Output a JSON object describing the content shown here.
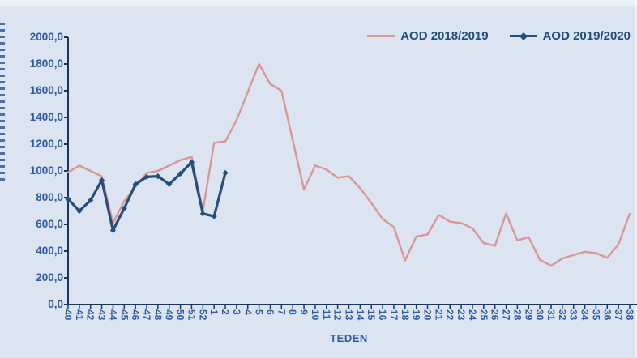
{
  "legend": {
    "items": [
      {
        "label": "AOD 2018/2019"
      },
      {
        "label": "AOD 2019/2020"
      }
    ]
  },
  "x_axis": {
    "title": "TEDEN"
  },
  "colors": {
    "background": "#dbe4f0",
    "axis": "#17375e",
    "tick_label": "#2e5b9f",
    "legend_text": "#1f4e79",
    "series_2018_2019": "#d99694",
    "series_2019_2020": "#254e79"
  },
  "chart_data": {
    "type": "line",
    "title": "",
    "xlabel": "TEDEN",
    "ylabel": "",
    "ylim": [
      0,
      2000
    ],
    "y_tick_step": 200,
    "y_tick_labels": [
      "2000,0",
      "1800,0",
      "1600,0",
      "1400,0",
      "1200,0",
      "1000,0",
      "800,0",
      "600,0",
      "400,0",
      "200,0",
      "0,0"
    ],
    "grid": false,
    "legend_position": "top-right",
    "x": [
      "40",
      "41",
      "42",
      "43",
      "44",
      "45",
      "46",
      "47",
      "48",
      "49",
      "50",
      "51",
      "52",
      "1",
      "2",
      "3",
      "4",
      "5",
      "6",
      "7",
      "8",
      "9",
      "10",
      "11",
      "12",
      "13",
      "14",
      "15",
      "16",
      "17",
      "18",
      "19",
      "20",
      "21",
      "22",
      "23",
      "24",
      "25",
      "26",
      "27",
      "28",
      "29",
      "30",
      "31",
      "32",
      "33",
      "34",
      "35",
      "36",
      "37",
      "38"
    ],
    "series": [
      {
        "name": "AOD 2018/2019",
        "color": "#d99694",
        "marker": "none",
        "values": [
          990,
          1040,
          1000,
          960,
          610,
          775,
          880,
          985,
          1000,
          1040,
          1080,
          1105,
          700,
          1210,
          1220,
          1380,
          1590,
          1800,
          1650,
          1600,
          1230,
          860,
          1040,
          1010,
          950,
          960,
          870,
          760,
          640,
          580,
          330,
          510,
          525,
          670,
          620,
          610,
          570,
          460,
          440,
          680,
          480,
          505,
          335,
          290,
          345,
          370,
          395,
          385,
          350,
          450,
          680
        ]
      },
      {
        "name": "AOD 2019/2020",
        "color": "#254e79",
        "marker": "diamond",
        "values": [
          790,
          700,
          780,
          930,
          555,
          720,
          900,
          955,
          960,
          900,
          980,
          1065,
          680,
          660,
          985
        ]
      }
    ]
  }
}
